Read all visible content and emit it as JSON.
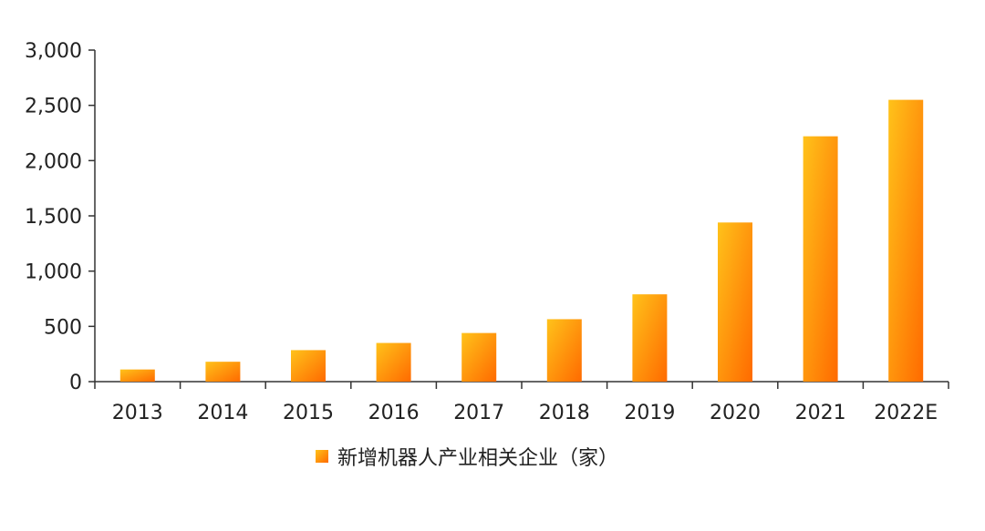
{
  "chart_data": {
    "type": "bar",
    "categories": [
      "2013",
      "2014",
      "2015",
      "2016",
      "2017",
      "2018",
      "2019",
      "2020",
      "2021",
      "2022E"
    ],
    "series": [
      {
        "name": "新增机器人产业相关企业（家）",
        "values": [
          110,
          180,
          285,
          350,
          440,
          565,
          790,
          1440,
          2220,
          2550
        ]
      }
    ],
    "y_ticks": [
      "0",
      "500",
      "1,000",
      "1,500",
      "2,000",
      "2,500",
      "3,000"
    ],
    "ylim": [
      0,
      3000
    ],
    "grid": false,
    "legend_position": "bottom",
    "colors": {
      "bar_light": "#ffc21a",
      "bar_dark": "#ff6a00",
      "axis": "#333333"
    }
  }
}
